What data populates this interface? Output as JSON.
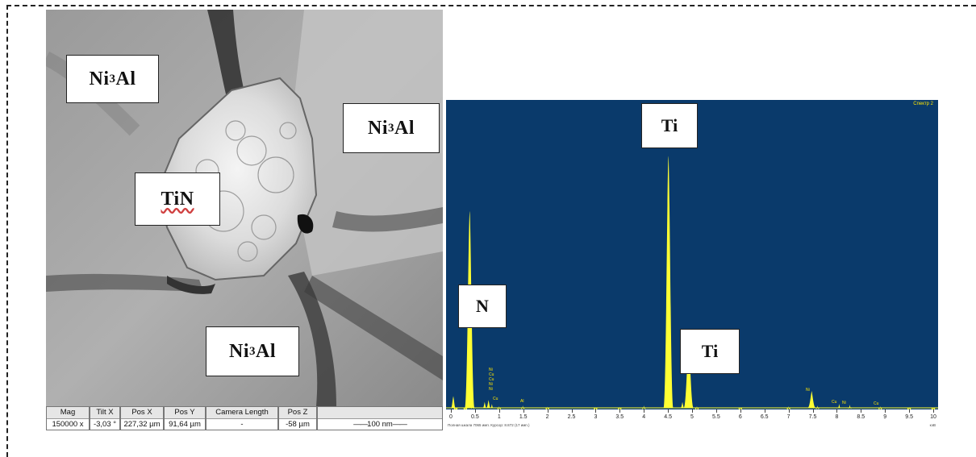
{
  "micrograph": {
    "labels": {
      "ni3al_a": {
        "base": "Ni",
        "sub": "3",
        "tail": "Al"
      },
      "ni3al_b": {
        "base": "Ni",
        "sub": "3",
        "tail": "Al"
      },
      "ni3al_c": {
        "base": "Ni",
        "sub": "3",
        "tail": "Al"
      },
      "tin": "TiN"
    },
    "infobar": {
      "mag": {
        "header": "Mag",
        "value": "150000 x"
      },
      "tilt_x": {
        "header": "Tilt X",
        "value": "-3,03 °"
      },
      "pos_x": {
        "header": "Pos X",
        "value": "227,32 µm"
      },
      "pos_y": {
        "header": "Pos Y",
        "value": "91,64 µm"
      },
      "camera_length": {
        "header": "Camera Length",
        "value": "-"
      },
      "pos_z": {
        "header": "Pos Z",
        "value": "-58 µm"
      },
      "scale_bar": "100 nm"
    }
  },
  "spectrum": {
    "name": "Спектр 2",
    "peak_labels": {
      "n": "N",
      "ti_major": "Ti",
      "ti_minor": "Ti"
    },
    "minor_labels": {
      "cluster_1": [
        "Ni",
        "Cu",
        "Cu",
        "Ni",
        "Ni"
      ],
      "cluster_2": [
        "Cu"
      ],
      "al": "Al",
      "ni_high": "Ni",
      "cu_ni_pair": [
        "Cu",
        "Ni"
      ],
      "cu_far": "Cu"
    },
    "x_ticks": [
      "0",
      "0.5",
      "1",
      "1.5",
      "2",
      "2.5",
      "3",
      "3.5",
      "4",
      "4.5",
      "5",
      "5.5",
      "6",
      "6.5",
      "7",
      "7.5",
      "8",
      "8.5",
      "9",
      "9.5",
      "10"
    ],
    "footer_note": "Полная шкала 7065 имп. Курсор: 8.872 (17 имп.)",
    "unit_label": "кэВ",
    "colors": {
      "background": "#0a3a6b",
      "peak": "#ffff33"
    }
  },
  "chart_data": {
    "type": "area",
    "title": "",
    "xlabel": "",
    "ylabel": "",
    "xlim": [
      0,
      10
    ],
    "series": [
      {
        "x": [
          0.05,
          0.1,
          0.3,
          0.39,
          0.45,
          0.7,
          0.78,
          0.85,
          1.0,
          1.49,
          2.0,
          3.0,
          3.5,
          4.0,
          4.51,
          4.8,
          4.93,
          5.1,
          6.0,
          7.0,
          7.48,
          7.6,
          8.05,
          8.27,
          8.9,
          9.5,
          10.0
        ],
        "y": [
          300,
          0,
          0,
          5000,
          80,
          150,
          200,
          100,
          40,
          60,
          30,
          20,
          25,
          60,
          6400,
          150,
          1700,
          40,
          20,
          40,
          430,
          60,
          100,
          80,
          40,
          20,
          10
        ]
      }
    ]
  }
}
